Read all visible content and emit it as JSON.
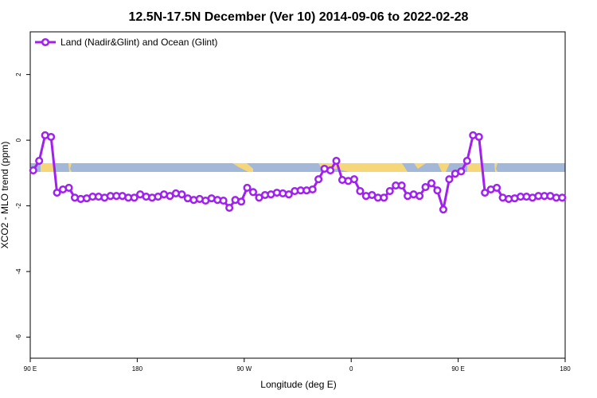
{
  "chart_data": {
    "type": "line",
    "title": "12.5N-17.5N December (Ver 10)   2014-09-06 to 2022-02-28",
    "x_label": "Longitude (deg E)",
    "y_label": "XCO2 - MLO trend (ppm)",
    "x": [
      92.5,
      97.5,
      102.5,
      107.5,
      112.5,
      117.5,
      122.5,
      127.5,
      132.5,
      137.5,
      142.5,
      147.5,
      152.5,
      157.5,
      162.5,
      167.5,
      172.5,
      177.5,
      182.5,
      187.5,
      192.5,
      197.5,
      202.5,
      207.5,
      212.5,
      217.5,
      222.5,
      227.5,
      232.5,
      237.5,
      242.5,
      247.5,
      252.5,
      257.5,
      262.5,
      267.5,
      272.5,
      277.5,
      282.5,
      287.5,
      292.5,
      297.5,
      302.5,
      307.5,
      312.5,
      317.5,
      322.5,
      327.5,
      332.5,
      337.5,
      342.5,
      347.5,
      352.5,
      357.5,
      362.5,
      367.5,
      372.5,
      377.5,
      382.5,
      387.5,
      392.5,
      397.5,
      402.5,
      407.5,
      412.5,
      417.5,
      422.5,
      427.5,
      432.5,
      437.5,
      442.5,
      447.5,
      452.5,
      457.5,
      462.5,
      467.5,
      472.5,
      477.5,
      482.5,
      487.5,
      492.5,
      497.5,
      502.5,
      507.5,
      512.5,
      517.5,
      522.5,
      527.5,
      532.5,
      537.5
    ],
    "series": [
      {
        "name": "Land (Nadir&Glint) and Ocean (Glint)",
        "color": "#a020f0",
        "values": [
          -0.92,
          -0.63,
          0.15,
          0.1,
          -1.6,
          -1.5,
          -1.45,
          -1.75,
          -1.79,
          -1.77,
          -1.72,
          -1.72,
          -1.75,
          -1.7,
          -1.7,
          -1.7,
          -1.75,
          -1.75,
          -1.65,
          -1.72,
          -1.75,
          -1.72,
          -1.65,
          -1.7,
          -1.62,
          -1.65,
          -1.77,
          -1.82,
          -1.79,
          -1.84,
          -1.77,
          -1.82,
          -1.84,
          -2.06,
          -1.82,
          -1.87,
          -1.45,
          -1.58,
          -1.75,
          -1.67,
          -1.65,
          -1.6,
          -1.62,
          -1.65,
          -1.55,
          -1.53,
          -1.53,
          -1.5,
          -1.19,
          -0.87,
          -0.92,
          -0.63,
          -1.21,
          -1.24,
          -1.19,
          -1.55,
          -1.7,
          -1.67,
          -1.75,
          -1.75,
          -1.55,
          -1.38,
          -1.38,
          -1.7,
          -1.65,
          -1.7,
          -1.43,
          -1.31,
          -1.53,
          -2.11,
          -1.19,
          -1.02,
          -0.95,
          -0.63,
          0.15,
          0.1,
          -1.6,
          -1.5,
          -1.45,
          -1.75,
          -1.79,
          -1.77,
          -1.72,
          -1.72,
          -1.75,
          -1.7,
          -1.7,
          -1.7,
          -1.75,
          -1.75
        ]
      }
    ],
    "xlim": [
      90,
      540
    ],
    "xticks": [
      {
        "value": 90,
        "label": "90 E"
      },
      180,
      {
        "value": 270,
        "label": "90 W"
      },
      {
        "value": 360,
        "label": "0"
      },
      {
        "value": 450,
        "label": "90 E"
      },
      {
        "value": 540,
        "label": "180"
      }
    ],
    "ylim": [
      -6.64,
      3.3
    ],
    "yticks": [
      -6,
      -4,
      -2,
      0,
      2
    ],
    "legend": "top-left"
  }
}
